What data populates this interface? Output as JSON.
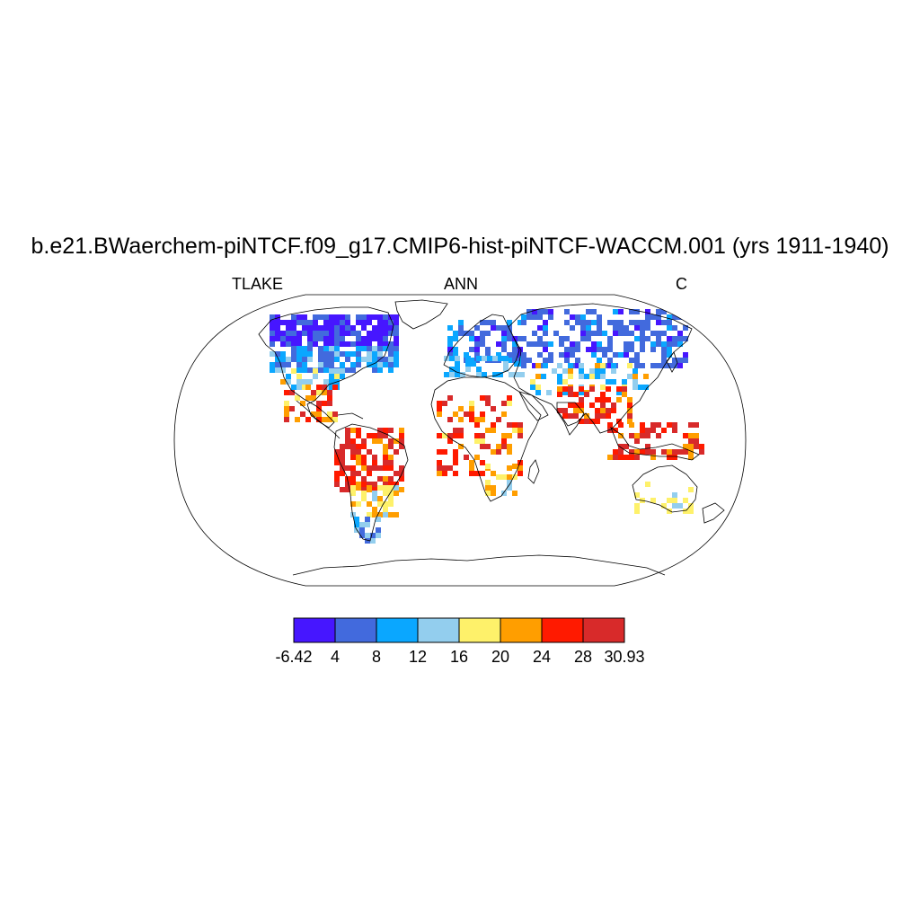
{
  "title": "b.e21.BWaerchem-piNTCF.f09_g17.CMIP6-hist-piNTCF-WACCM.001 (yrs 1911-1940)",
  "subtitle_left": "TLAKE",
  "subtitle_center": "ANN",
  "subtitle_right": "C",
  "colorbar": {
    "colors": [
      "#4616ff",
      "#426add",
      "#0aa7ff",
      "#93ceee",
      "#fef16a",
      "#ff9e00",
      "#ff1a00",
      "#d82a2a"
    ],
    "labels": [
      "-6.42",
      "4",
      "8",
      "12",
      "16",
      "20",
      "24",
      "28",
      "30.93"
    ]
  },
  "land_fill": "#ffffff",
  "coast_color": "#000000"
}
